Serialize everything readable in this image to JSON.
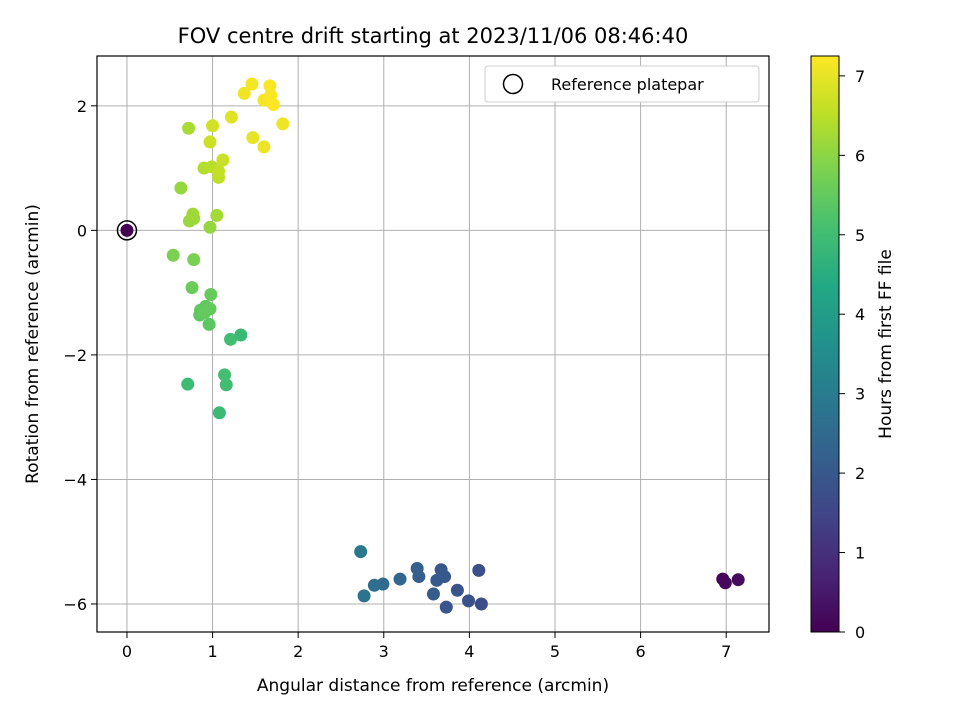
{
  "chart_data": {
    "type": "scatter",
    "title": "FOV centre drift starting at 2023/11/06 08:46:40",
    "xlabel": "Angular distance from reference (arcmin)",
    "ylabel": "Rotation from reference (arcmin)",
    "xlim": [
      -0.35,
      7.5
    ],
    "ylim": [
      -6.45,
      2.8
    ],
    "xticks": [
      0,
      1,
      2,
      3,
      4,
      5,
      6,
      7
    ],
    "yticks": [
      2,
      0,
      -2,
      -4,
      -6
    ],
    "xtick_labels": [
      "0",
      "1",
      "2",
      "3",
      "4",
      "5",
      "6",
      "7"
    ],
    "ytick_labels": [
      "2",
      "0",
      "−2",
      "−4",
      "−6"
    ],
    "grid": true,
    "legend": {
      "position": "top-right",
      "label": "Reference platepar"
    },
    "colorbar": {
      "label": "Hours from first FF file",
      "min": 0,
      "max": 7.25,
      "ticks": [
        0,
        1,
        2,
        3,
        4,
        5,
        6,
        7
      ],
      "tick_labels": [
        "0",
        "1",
        "2",
        "3",
        "4",
        "5",
        "6",
        "7"
      ],
      "colormap": "viridis"
    },
    "reference": {
      "x": 0,
      "y": 0
    },
    "points": [
      {
        "x": 0,
        "y": 0,
        "h": 0.0
      },
      {
        "x": 6.96,
        "y": -5.6,
        "h": 0.1
      },
      {
        "x": 6.99,
        "y": -5.66,
        "h": 0.15
      },
      {
        "x": 7.14,
        "y": -5.61,
        "h": 0.2
      },
      {
        "x": 4.14,
        "y": -6.0,
        "h": 1.7
      },
      {
        "x": 4.11,
        "y": -5.46,
        "h": 1.75
      },
      {
        "x": 3.99,
        "y": -5.95,
        "h": 1.8
      },
      {
        "x": 3.86,
        "y": -5.78,
        "h": 1.85
      },
      {
        "x": 3.73,
        "y": -6.05,
        "h": 1.9
      },
      {
        "x": 3.71,
        "y": -5.56,
        "h": 1.95
      },
      {
        "x": 3.67,
        "y": -5.45,
        "h": 2.0
      },
      {
        "x": 3.62,
        "y": -5.62,
        "h": 2.05
      },
      {
        "x": 3.58,
        "y": -5.84,
        "h": 2.1
      },
      {
        "x": 3.41,
        "y": -5.56,
        "h": 2.15
      },
      {
        "x": 3.39,
        "y": -5.43,
        "h": 2.2
      },
      {
        "x": 3.19,
        "y": -5.6,
        "h": 2.4
      },
      {
        "x": 2.99,
        "y": -5.68,
        "h": 2.5
      },
      {
        "x": 2.89,
        "y": -5.7,
        "h": 2.6
      },
      {
        "x": 2.77,
        "y": -5.87,
        "h": 2.75
      },
      {
        "x": 2.73,
        "y": -5.16,
        "h": 2.9
      },
      {
        "x": 1.08,
        "y": -2.93,
        "h": 4.9
      },
      {
        "x": 0.71,
        "y": -2.47,
        "h": 4.95
      },
      {
        "x": 1.16,
        "y": -2.48,
        "h": 5.0
      },
      {
        "x": 1.14,
        "y": -2.32,
        "h": 5.05
      },
      {
        "x": 1.33,
        "y": -1.68,
        "h": 4.85
      },
      {
        "x": 1.21,
        "y": -1.75,
        "h": 5.0
      },
      {
        "x": 0.96,
        "y": -1.51,
        "h": 5.4
      },
      {
        "x": 0.85,
        "y": -1.36,
        "h": 5.4
      },
      {
        "x": 0.86,
        "y": -1.28,
        "h": 5.45
      },
      {
        "x": 0.92,
        "y": -1.22,
        "h": 5.45
      },
      {
        "x": 0.97,
        "y": -1.26,
        "h": 5.5
      },
      {
        "x": 0.91,
        "y": -1.32,
        "h": 5.5
      },
      {
        "x": 0.98,
        "y": -1.03,
        "h": 5.55
      },
      {
        "x": 0.76,
        "y": -0.92,
        "h": 5.6
      },
      {
        "x": 0.78,
        "y": -0.47,
        "h": 5.8
      },
      {
        "x": 0.54,
        "y": -0.4,
        "h": 5.8
      },
      {
        "x": 0.97,
        "y": 0.05,
        "h": 6.1
      },
      {
        "x": 0.73,
        "y": 0.15,
        "h": 6.15
      },
      {
        "x": 0.78,
        "y": 0.19,
        "h": 6.15
      },
      {
        "x": 0.77,
        "y": 0.26,
        "h": 6.2
      },
      {
        "x": 1.05,
        "y": 0.24,
        "h": 6.25
      },
      {
        "x": 0.63,
        "y": 0.68,
        "h": 6.1
      },
      {
        "x": 0.9,
        "y": 1.0,
        "h": 6.4
      },
      {
        "x": 0.99,
        "y": 1.02,
        "h": 6.45
      },
      {
        "x": 1.07,
        "y": 0.85,
        "h": 6.55
      },
      {
        "x": 1.07,
        "y": 0.95,
        "h": 6.6
      },
      {
        "x": 1.12,
        "y": 1.13,
        "h": 6.65
      },
      {
        "x": 0.72,
        "y": 1.64,
        "h": 6.3
      },
      {
        "x": 1.0,
        "y": 1.68,
        "h": 6.75
      },
      {
        "x": 0.97,
        "y": 1.42,
        "h": 6.7
      },
      {
        "x": 1.22,
        "y": 1.82,
        "h": 6.9
      },
      {
        "x": 1.47,
        "y": 1.49,
        "h": 7.0
      },
      {
        "x": 1.6,
        "y": 1.34,
        "h": 7.05
      },
      {
        "x": 1.82,
        "y": 1.71,
        "h": 7.1
      },
      {
        "x": 1.37,
        "y": 2.2,
        "h": 7.1
      },
      {
        "x": 1.46,
        "y": 2.35,
        "h": 7.15
      },
      {
        "x": 1.6,
        "y": 2.09,
        "h": 7.15
      },
      {
        "x": 1.67,
        "y": 2.32,
        "h": 7.2
      },
      {
        "x": 1.68,
        "y": 2.17,
        "h": 7.2
      },
      {
        "x": 1.71,
        "y": 2.02,
        "h": 7.25
      }
    ]
  }
}
